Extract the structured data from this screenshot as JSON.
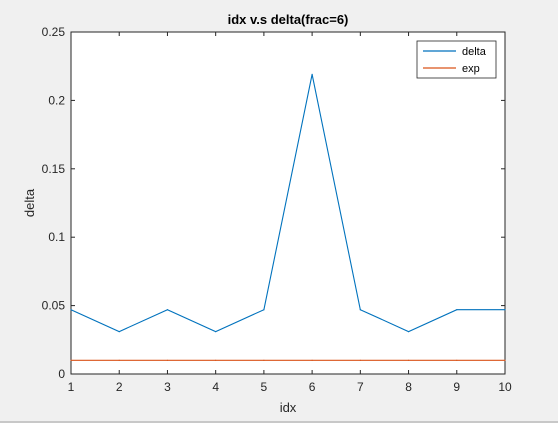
{
  "chart_data": {
    "type": "line",
    "title": "idx v.s delta(frac=6)",
    "xlabel": "idx",
    "ylabel": "delta",
    "xlim": [
      1,
      10
    ],
    "ylim": [
      0,
      0.25
    ],
    "xticks": [
      1,
      2,
      3,
      4,
      5,
      6,
      7,
      8,
      9,
      10
    ],
    "yticks": [
      0,
      0.05,
      0.1,
      0.15,
      0.2,
      0.25
    ],
    "ytick_labels": [
      "0",
      "0.05",
      "0.1",
      "0.15",
      "0.2",
      "0.25"
    ],
    "grid": false,
    "legend_position": "top-right",
    "x": [
      1,
      2,
      3,
      4,
      5,
      6,
      7,
      8,
      9,
      10
    ],
    "series": [
      {
        "name": "delta",
        "color": "#0072bd",
        "values": [
          0.047,
          0.031,
          0.047,
          0.031,
          0.047,
          0.219,
          0.047,
          0.031,
          0.047,
          0.047
        ]
      },
      {
        "name": "exp",
        "color": "#d95319",
        "values": [
          0.01,
          0.01,
          0.01,
          0.01,
          0.01,
          0.01,
          0.01,
          0.01,
          0.01,
          0.01
        ]
      }
    ]
  },
  "colors": {
    "window_background": "#f0f0f0",
    "axes_background": "#ffffff",
    "axis_color": "#262626"
  }
}
